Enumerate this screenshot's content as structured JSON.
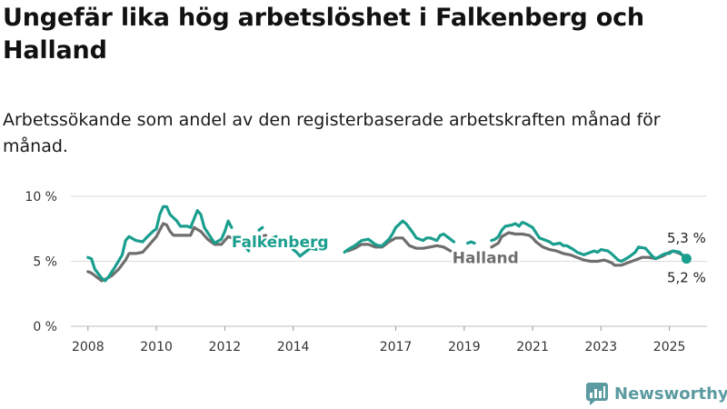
{
  "title": "Ungefär lika hög arbetslöshet i Falkenberg och Halland",
  "subtitle": "Arbetssökande som andel av den registerbaserade arbetskraften månad för månad.",
  "brand": {
    "name": "Newsworthy",
    "icon": "newsworthy-logo-icon",
    "color": "#5a9aa0"
  },
  "chart_data": {
    "type": "line",
    "title": "Ungefär lika hög arbetslöshet i Falkenberg och Halland",
    "subtitle": "Arbetssökande som andel av den registerbaserade arbetskraften månad för månad.",
    "xlabel": "",
    "ylabel": "",
    "xlim": [
      2007.5,
      2026.1
    ],
    "ylim": [
      0,
      10
    ],
    "y_ticks": [
      0,
      5,
      10
    ],
    "y_tick_labels": [
      "0 %",
      "5 %",
      "10 %"
    ],
    "x_ticks": [
      2008,
      2010,
      2012,
      2014,
      2017,
      2019,
      2021,
      2023,
      2025
    ],
    "x_tick_labels": [
      "2008",
      "2010",
      "2012",
      "2014",
      "2017",
      "2019",
      "2021",
      "2023",
      "2025"
    ],
    "grid": "horizontal",
    "legend": "direct labels on lines",
    "series": [
      {
        "name": "Falkenberg",
        "color": "#1a9e8e",
        "label": "Falkenberg",
        "end_label": "5,2 %",
        "points": [
          [
            2008.0,
            5.3
          ],
          [
            2008.1,
            5.2
          ],
          [
            2008.2,
            4.4
          ],
          [
            2008.4,
            3.7
          ],
          [
            2008.5,
            3.5
          ],
          [
            2008.6,
            3.8
          ],
          [
            2008.8,
            4.6
          ],
          [
            2009.0,
            5.5
          ],
          [
            2009.1,
            6.6
          ],
          [
            2009.2,
            6.9
          ],
          [
            2009.4,
            6.6
          ],
          [
            2009.6,
            6.5
          ],
          [
            2009.7,
            6.8
          ],
          [
            2009.9,
            7.3
          ],
          [
            2010.0,
            7.5
          ],
          [
            2010.1,
            8.6
          ],
          [
            2010.2,
            9.2
          ],
          [
            2010.3,
            9.2
          ],
          [
            2010.4,
            8.6
          ],
          [
            2010.6,
            8.1
          ],
          [
            2010.7,
            7.7
          ],
          [
            2010.9,
            7.7
          ],
          [
            2011.0,
            7.6
          ],
          [
            2011.2,
            8.9
          ],
          [
            2011.3,
            8.6
          ],
          [
            2011.4,
            7.6
          ],
          [
            2011.6,
            6.8
          ],
          [
            2011.7,
            6.4
          ],
          [
            2011.9,
            6.7
          ],
          [
            2012.0,
            7.3
          ],
          [
            2012.1,
            8.1
          ],
          [
            2012.2,
            7.6
          ],
          null,
          [
            2012.5,
            6.5
          ],
          [
            2012.7,
            5.8
          ],
          null,
          [
            2013.0,
            7.4
          ],
          [
            2013.1,
            7.6
          ],
          null,
          [
            2013.4,
            6.8
          ],
          [
            2013.5,
            6.9
          ],
          null,
          [
            2014.0,
            5.9
          ],
          [
            2014.1,
            5.7
          ],
          [
            2014.2,
            5.4
          ],
          [
            2014.3,
            5.6
          ],
          [
            2014.5,
            6.0
          ],
          [
            2014.7,
            5.9
          ],
          [
            2014.8,
            6.1
          ],
          null,
          [
            2015.5,
            5.7
          ],
          [
            2015.6,
            5.9
          ],
          [
            2015.8,
            6.2
          ],
          [
            2015.9,
            6.4
          ],
          [
            2016.0,
            6.6
          ],
          [
            2016.2,
            6.7
          ],
          [
            2016.4,
            6.3
          ],
          [
            2016.5,
            6.2
          ],
          [
            2016.6,
            6.2
          ],
          [
            2016.8,
            6.7
          ],
          [
            2016.9,
            7.1
          ],
          [
            2017.0,
            7.6
          ],
          [
            2017.2,
            8.1
          ],
          [
            2017.3,
            7.9
          ],
          [
            2017.5,
            7.2
          ],
          [
            2017.6,
            6.8
          ],
          [
            2017.8,
            6.6
          ],
          [
            2017.9,
            6.8
          ],
          [
            2018.0,
            6.8
          ],
          [
            2018.2,
            6.6
          ],
          [
            2018.3,
            7.0
          ],
          [
            2018.4,
            7.1
          ],
          [
            2018.6,
            6.7
          ],
          [
            2018.7,
            6.5
          ],
          null,
          [
            2019.1,
            6.4
          ],
          [
            2019.2,
            6.5
          ],
          [
            2019.3,
            6.4
          ],
          null,
          [
            2019.8,
            6.6
          ],
          [
            2019.9,
            6.7
          ],
          [
            2020.0,
            6.9
          ],
          [
            2020.1,
            7.4
          ],
          [
            2020.2,
            7.7
          ],
          [
            2020.4,
            7.8
          ],
          [
            2020.5,
            7.9
          ],
          [
            2020.6,
            7.7
          ],
          [
            2020.7,
            8.0
          ],
          [
            2020.8,
            7.9
          ],
          [
            2021.0,
            7.6
          ],
          [
            2021.1,
            7.2
          ],
          [
            2021.2,
            6.8
          ],
          [
            2021.4,
            6.6
          ],
          [
            2021.5,
            6.5
          ],
          [
            2021.6,
            6.3
          ],
          [
            2021.8,
            6.4
          ],
          [
            2021.9,
            6.2
          ],
          [
            2022.0,
            6.2
          ],
          [
            2022.2,
            5.9
          ],
          [
            2022.3,
            5.7
          ],
          [
            2022.5,
            5.5
          ],
          [
            2022.6,
            5.6
          ],
          [
            2022.8,
            5.8
          ],
          [
            2022.9,
            5.7
          ],
          [
            2023.0,
            5.9
          ],
          [
            2023.2,
            5.8
          ],
          [
            2023.3,
            5.6
          ],
          [
            2023.5,
            5.1
          ],
          [
            2023.6,
            5.0
          ],
          [
            2023.8,
            5.3
          ],
          [
            2023.9,
            5.5
          ],
          [
            2024.0,
            5.7
          ],
          [
            2024.1,
            6.1
          ],
          [
            2024.3,
            6.0
          ],
          [
            2024.5,
            5.4
          ],
          [
            2024.6,
            5.2
          ],
          [
            2024.8,
            5.5
          ],
          [
            2024.9,
            5.6
          ],
          [
            2025.0,
            5.6
          ],
          [
            2025.1,
            5.8
          ],
          [
            2025.3,
            5.7
          ],
          [
            2025.4,
            5.4
          ],
          [
            2025.5,
            5.2
          ]
        ]
      },
      {
        "name": "Halland",
        "color": "#6e6e6e",
        "label": "Halland",
        "end_label": "5,3 %",
        "points": [
          [
            2008.0,
            4.2
          ],
          [
            2008.1,
            4.1
          ],
          [
            2008.3,
            3.7
          ],
          [
            2008.4,
            3.5
          ],
          [
            2008.5,
            3.6
          ],
          [
            2008.7,
            3.9
          ],
          [
            2008.9,
            4.4
          ],
          [
            2009.1,
            5.1
          ],
          [
            2009.2,
            5.6
          ],
          [
            2009.4,
            5.6
          ],
          [
            2009.6,
            5.7
          ],
          [
            2009.8,
            6.3
          ],
          [
            2010.0,
            6.9
          ],
          [
            2010.1,
            7.4
          ],
          [
            2010.2,
            7.9
          ],
          [
            2010.3,
            7.8
          ],
          [
            2010.4,
            7.3
          ],
          [
            2010.5,
            7.0
          ],
          [
            2010.7,
            7.0
          ],
          [
            2010.9,
            7.0
          ],
          [
            2011.0,
            7.0
          ],
          [
            2011.1,
            7.6
          ],
          [
            2011.3,
            7.3
          ],
          [
            2011.5,
            6.7
          ],
          [
            2011.7,
            6.3
          ],
          [
            2011.9,
            6.3
          ],
          [
            2012.0,
            6.6
          ],
          [
            2012.1,
            6.9
          ],
          [
            2012.2,
            6.8
          ],
          null,
          [
            2013.0,
            6.9
          ],
          [
            2013.2,
            7.0
          ],
          null,
          [
            2015.6,
            5.8
          ],
          [
            2015.8,
            6.0
          ],
          [
            2016.0,
            6.3
          ],
          [
            2016.2,
            6.3
          ],
          [
            2016.4,
            6.1
          ],
          [
            2016.6,
            6.1
          ],
          [
            2016.8,
            6.5
          ],
          [
            2017.0,
            6.8
          ],
          [
            2017.2,
            6.8
          ],
          [
            2017.4,
            6.2
          ],
          [
            2017.6,
            6.0
          ],
          [
            2017.8,
            6.0
          ],
          [
            2018.0,
            6.1
          ],
          [
            2018.2,
            6.2
          ],
          [
            2018.4,
            6.1
          ],
          [
            2018.6,
            5.8
          ],
          null,
          [
            2019.8,
            6.1
          ],
          [
            2020.0,
            6.4
          ],
          [
            2020.1,
            6.9
          ],
          [
            2020.3,
            7.2
          ],
          [
            2020.5,
            7.1
          ],
          [
            2020.7,
            7.1
          ],
          [
            2020.9,
            7.0
          ],
          [
            2021.0,
            6.8
          ],
          [
            2021.1,
            6.5
          ],
          [
            2021.3,
            6.1
          ],
          [
            2021.5,
            5.9
          ],
          [
            2021.7,
            5.8
          ],
          [
            2021.9,
            5.6
          ],
          [
            2022.1,
            5.5
          ],
          [
            2022.3,
            5.3
          ],
          [
            2022.5,
            5.1
          ],
          [
            2022.7,
            5.0
          ],
          [
            2022.9,
            5.0
          ],
          [
            2023.1,
            5.1
          ],
          [
            2023.3,
            4.9
          ],
          [
            2023.4,
            4.7
          ],
          [
            2023.6,
            4.7
          ],
          [
            2023.8,
            4.9
          ],
          [
            2024.0,
            5.1
          ],
          [
            2024.2,
            5.3
          ],
          [
            2024.4,
            5.3
          ],
          [
            2024.6,
            5.2
          ],
          [
            2024.8,
            5.4
          ],
          [
            2025.0,
            5.7
          ],
          [
            2025.1,
            5.8
          ],
          [
            2025.3,
            5.6
          ],
          [
            2025.5,
            5.3
          ]
        ]
      }
    ]
  }
}
